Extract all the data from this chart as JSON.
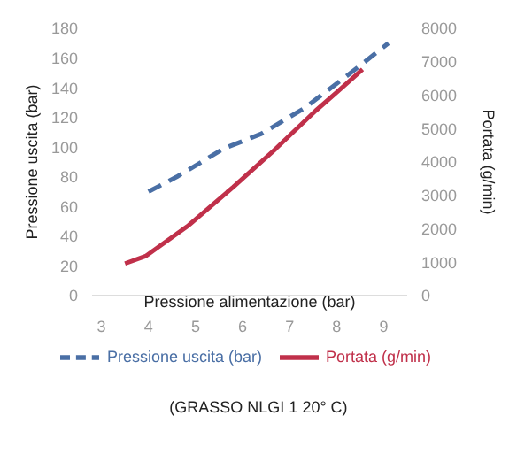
{
  "chart_data": {
    "type": "line",
    "xlabel": "Pressione alimentazione (bar)",
    "ylabel": "Pressione uscita (bar)",
    "y2label": "Portata (g/min)",
    "xlim": [
      2.8,
      9.5
    ],
    "xticks": [
      3,
      4,
      5,
      6,
      7,
      8,
      9
    ],
    "ylim": [
      0,
      180
    ],
    "yticks": [
      0,
      20,
      40,
      60,
      80,
      100,
      120,
      140,
      160,
      180
    ],
    "y2lim": [
      0,
      8000
    ],
    "y2ticks": [
      0,
      1000,
      2000,
      3000,
      4000,
      5000,
      6000,
      7000,
      8000
    ],
    "legend": "bottom",
    "marker": "none",
    "annotations": [
      "(GRASSO NLGI 1 20° C)"
    ],
    "series": [
      {
        "name": "Pressione uscita (bar)",
        "color": "#4a6fa5",
        "line_style": "dashed",
        "x": [
          4.0,
          4.6,
          5.6,
          6.4,
          7.3,
          8.3,
          9.1
        ],
        "values": [
          70,
          80,
          99,
          109,
          126,
          150,
          170
        ]
      },
      {
        "name": "Portata (g/min)",
        "color": "#c0304a",
        "line_style": "solid",
        "axis": "y2",
        "x": [
          3.5,
          3.95,
          4.85,
          5.8,
          6.7,
          7.55,
          8.0,
          8.55
        ],
        "values": [
          960,
          1190,
          2100,
          3250,
          4390,
          5530,
          6080,
          6770
        ]
      }
    ]
  }
}
